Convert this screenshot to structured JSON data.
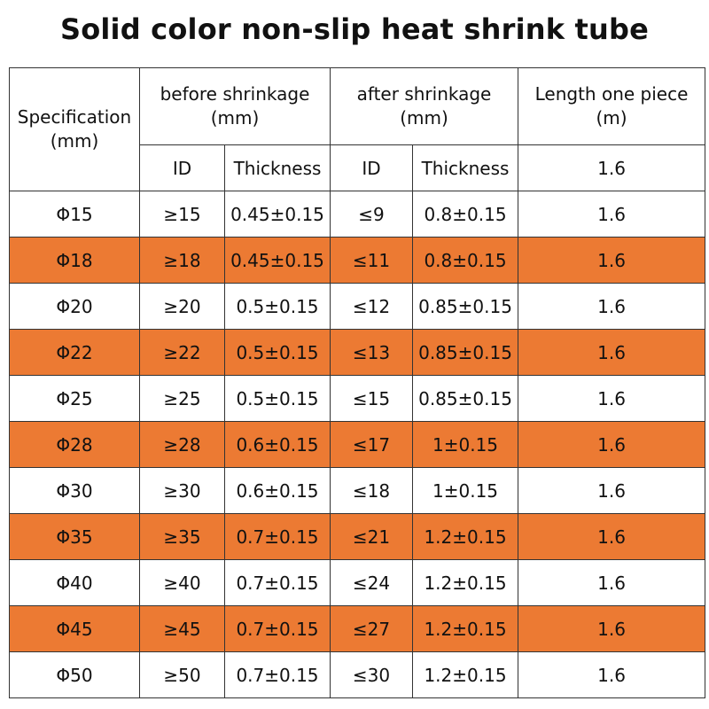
{
  "title": "Solid color non-slip heat shrink tube",
  "header": {
    "specification": "Specification (mm)",
    "before": "before shrinkage (mm)",
    "after": "after shrinkage (mm)",
    "length": "Length one piece (m)",
    "sub": {
      "before_id": "ID",
      "before_thickness": "Thickness",
      "after_id": "ID",
      "after_thickness": "Thickness",
      "length_value": "1.6"
    }
  },
  "highlight_color": "#ec7a33",
  "rows": [
    {
      "spec": "Φ15",
      "before_id": "≥15",
      "before_thickness": "0.45±0.15",
      "after_id": "≤9",
      "after_thickness": "0.8±0.15",
      "length": "1.6",
      "highlighted": false
    },
    {
      "spec": "Φ18",
      "before_id": "≥18",
      "before_thickness": "0.45±0.15",
      "after_id": "≤11",
      "after_thickness": "0.8±0.15",
      "length": "1.6",
      "highlighted": true
    },
    {
      "spec": "Φ20",
      "before_id": "≥20",
      "before_thickness": "0.5±0.15",
      "after_id": "≤12",
      "after_thickness": "0.85±0.15",
      "length": "1.6",
      "highlighted": false
    },
    {
      "spec": "Φ22",
      "before_id": "≥22",
      "before_thickness": "0.5±0.15",
      "after_id": "≤13",
      "after_thickness": "0.85±0.15",
      "length": "1.6",
      "highlighted": true
    },
    {
      "spec": "Φ25",
      "before_id": "≥25",
      "before_thickness": "0.5±0.15",
      "after_id": "≤15",
      "after_thickness": "0.85±0.15",
      "length": "1.6",
      "highlighted": false
    },
    {
      "spec": "Φ28",
      "before_id": "≥28",
      "before_thickness": "0.6±0.15",
      "after_id": "≤17",
      "after_thickness": "1±0.15",
      "length": "1.6",
      "highlighted": true
    },
    {
      "spec": "Φ30",
      "before_id": "≥30",
      "before_thickness": "0.6±0.15",
      "after_id": "≤18",
      "after_thickness": "1±0.15",
      "length": "1.6",
      "highlighted": false
    },
    {
      "spec": "Φ35",
      "before_id": "≥35",
      "before_thickness": "0.7±0.15",
      "after_id": "≤21",
      "after_thickness": "1.2±0.15",
      "length": "1.6",
      "highlighted": true
    },
    {
      "spec": "Φ40",
      "before_id": "≥40",
      "before_thickness": "0.7±0.15",
      "after_id": "≤24",
      "after_thickness": "1.2±0.15",
      "length": "1.6",
      "highlighted": false
    },
    {
      "spec": "Φ45",
      "before_id": "≥45",
      "before_thickness": "0.7±0.15",
      "after_id": "≤27",
      "after_thickness": "1.2±0.15",
      "length": "1.6",
      "highlighted": true
    },
    {
      "spec": "Φ50",
      "before_id": "≥50",
      "before_thickness": "0.7±0.15",
      "after_id": "≤30",
      "after_thickness": "1.2±0.15",
      "length": "1.6",
      "highlighted": false
    }
  ]
}
